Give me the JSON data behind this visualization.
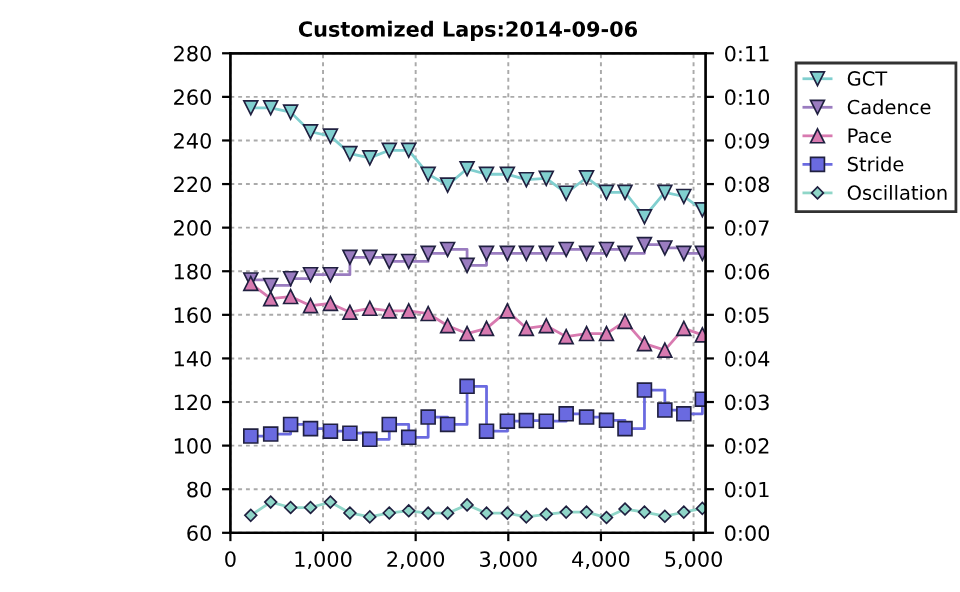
{
  "chart_data": {
    "type": "line",
    "title": "Customized Laps:2014-09-06",
    "x": [
      220,
      435,
      650,
      865,
      1080,
      1290,
      1505,
      1715,
      1925,
      2135,
      2345,
      2555,
      2765,
      2990,
      3195,
      3410,
      3625,
      3845,
      4060,
      4260,
      4470,
      4690,
      4895,
      5095
    ],
    "series": [
      {
        "name": "GCT",
        "color": "#80cfcf",
        "marker": "triangle_down",
        "values": [
          255,
          255,
          253,
          244,
          242,
          234,
          232,
          235.5,
          235.5,
          224.5,
          219.5,
          227,
          224.5,
          224.5,
          222,
          222.6,
          215.8,
          222.9,
          216.2,
          216.2,
          205,
          216.2,
          214.3,
          208.2
        ]
      },
      {
        "name": "Cadence",
        "color": "#9a7cc0",
        "type": "step",
        "marker": "triangle_down",
        "values": [
          176,
          173.5,
          176.6,
          178.4,
          178.4,
          186.4,
          186.4,
          184.5,
          184.5,
          188.2,
          190,
          182.7,
          188.2,
          188.2,
          188.2,
          188.2,
          190,
          188.2,
          190,
          188.2,
          192.2,
          190.7,
          188.2,
          188.2
        ]
      },
      {
        "name": "Pace",
        "color": "#d87ab0",
        "axis": "y2",
        "marker": "triangle",
        "values": [
          5.72,
          5.37,
          5.42,
          5.21,
          5.26,
          5.06,
          5.15,
          5.09,
          5.09,
          5.03,
          4.75,
          4.57,
          4.69,
          5.09,
          4.69,
          4.75,
          4.5,
          4.57,
          4.57,
          4.85,
          4.34,
          4.19,
          4.69,
          4.54
        ]
      },
      {
        "name": "Stride",
        "color": "#6a6ae0",
        "type": "step",
        "marker": "square",
        "values": [
          104.4,
          105.3,
          109.7,
          107.8,
          106.6,
          105.7,
          102.9,
          109.7,
          103.8,
          113.1,
          109.7,
          127.2,
          106.6,
          111.2,
          111.5,
          111.2,
          114.6,
          113.1,
          111.6,
          107.8,
          125.5,
          116.3,
          114.6,
          121.3
        ]
      },
      {
        "name": "Oscillation",
        "color": "#8fd6c8",
        "marker": "diamond",
        "values": [
          68,
          74.1,
          71.6,
          71.6,
          74.1,
          69.1,
          67.3,
          69.1,
          70.1,
          69,
          69,
          72.8,
          69,
          69,
          67.3,
          68.5,
          69.5,
          69.5,
          67,
          70.9,
          69.5,
          67.6,
          69.5,
          71.2
        ]
      }
    ],
    "xlim": [
      0,
      5130
    ],
    "xticks": [
      0,
      {
        "value": 1000,
        "label": "1,000"
      },
      {
        "value": 2000,
        "label": "2,000"
      },
      {
        "value": 3000,
        "label": "3,000"
      },
      {
        "value": 4000,
        "label": "4,000"
      },
      {
        "value": 5000,
        "label": "5,000"
      }
    ],
    "ylim": [
      60,
      280
    ],
    "yticks": [
      60,
      80,
      100,
      120,
      140,
      160,
      180,
      200,
      220,
      240,
      260,
      280
    ],
    "y2lim": [
      0,
      11
    ],
    "y2ticks": [
      {
        "value": 0,
        "label": "0:00"
      },
      {
        "value": 1,
        "label": "0:01"
      },
      {
        "value": 2,
        "label": "0:02"
      },
      {
        "value": 3,
        "label": "0:03"
      },
      {
        "value": 4,
        "label": "0:04"
      },
      {
        "value": 5,
        "label": "0:05"
      },
      {
        "value": 6,
        "label": "0:06"
      },
      {
        "value": 7,
        "label": "0:07"
      },
      {
        "value": 8,
        "label": "0:08"
      },
      {
        "value": 9,
        "label": "0:09"
      },
      {
        "value": 10,
        "label": "0:10"
      },
      {
        "value": 11,
        "label": "0:11"
      }
    ],
    "grid": true,
    "legend": "top right",
    "line_style": "solid"
  }
}
